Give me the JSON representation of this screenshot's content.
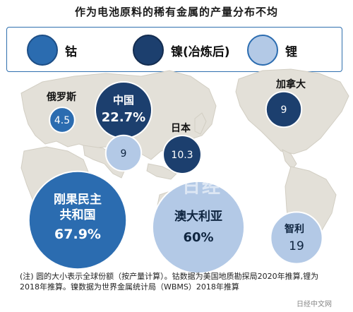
{
  "title": "作为电池原料的稀有金属的产量分布不均",
  "legend": [
    {
      "label": "钴",
      "color": "#2b6cb0",
      "border": "#1d4e86"
    },
    {
      "label": "镍(冶炼后)",
      "color": "#1c3f6e",
      "border": "#132c4f"
    },
    {
      "label": "锂",
      "color": "#b3c9e6",
      "border": "#2b6cb0"
    }
  ],
  "chart_data": {
    "type": "bubble",
    "title": "作为电池原料的稀有金属的产量分布不均",
    "series": [
      {
        "name": "钴",
        "color": "#2b6cb0",
        "text_color": "#ffffff",
        "points": [
          {
            "country": "俄罗斯",
            "value": 4.5,
            "label": "4.5"
          },
          {
            "country": "刚果民主共和国",
            "value": 67.9,
            "label": "67.9%"
          }
        ]
      },
      {
        "name": "镍(冶炼后)",
        "color": "#1c3f6e",
        "text_color": "#ffffff",
        "points": [
          {
            "country": "中国",
            "value": 22.7,
            "label": "22.7%"
          },
          {
            "country": "日本",
            "value": 10.3,
            "label": "10.3"
          },
          {
            "country": "加拿大",
            "value": 9,
            "label": "9"
          }
        ]
      },
      {
        "name": "锂",
        "color": "#b3c9e6",
        "text_color": "#0f2540",
        "points": [
          {
            "country": "中国",
            "value": 9,
            "label": "9"
          },
          {
            "country": "澳大利亚",
            "value": 60,
            "label": "60%"
          },
          {
            "country": "智利",
            "value": 19,
            "label": "19"
          }
        ]
      }
    ]
  },
  "country_labels": {
    "russia": "俄罗斯",
    "china": "中国",
    "japan": "日本",
    "canada": "加拿大",
    "drc": "刚果民主共和国",
    "drc_line1": "刚果民主",
    "drc_line2": "共和国",
    "australia": "澳大利亚",
    "chile": "智利"
  },
  "note": "(注) 圆的大小表示全球份额（按产量计算）。钴数据为美国地质勘探局2020年推算,锂为2018年推算。镍数据为世界金属统计局（WBMS）2018年推算",
  "watermark": "日经中文网",
  "source": "日经中文网"
}
